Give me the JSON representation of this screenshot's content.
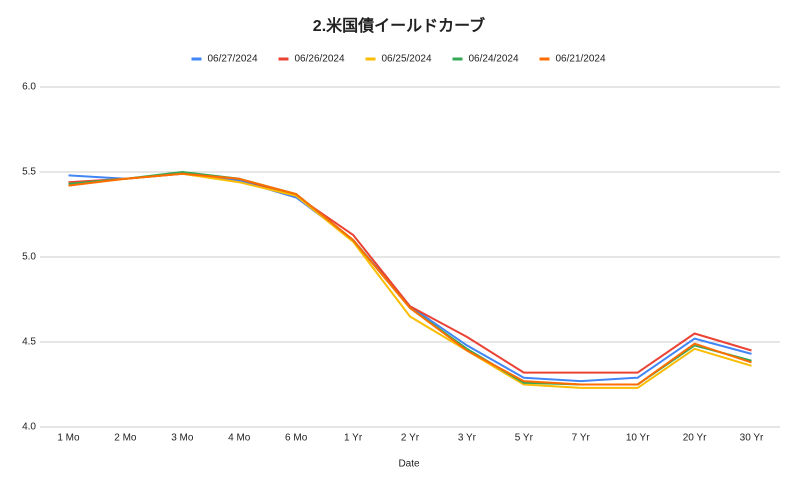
{
  "chart_data": {
    "type": "line",
    "title": "2.米国債イールドカーブ",
    "x_label": "Date",
    "categories": [
      "1 Mo",
      "2 Mo",
      "3 Mo",
      "4 Mo",
      "6 Mo",
      "1 Yr",
      "2 Yr",
      "3 Yr",
      "5 Yr",
      "7 Yr",
      "10 Yr",
      "20 Yr",
      "30 Yr"
    ],
    "series": [
      {
        "name": "06/27/2024",
        "color": "#4285f4",
        "values": [
          5.48,
          5.46,
          5.49,
          5.45,
          5.35,
          5.1,
          4.71,
          4.48,
          4.29,
          4.27,
          4.29,
          4.52,
          4.43
        ]
      },
      {
        "name": "06/26/2024",
        "color": "#ea4335",
        "values": [
          5.44,
          5.46,
          5.49,
          5.46,
          5.36,
          5.13,
          4.71,
          4.53,
          4.32,
          4.32,
          4.32,
          4.55,
          4.45
        ]
      },
      {
        "name": "06/25/2024",
        "color": "#fbbc04",
        "values": [
          5.43,
          5.46,
          5.49,
          5.44,
          5.36,
          5.09,
          4.65,
          4.45,
          4.25,
          4.23,
          4.23,
          4.46,
          4.36
        ]
      },
      {
        "name": "06/24/2024",
        "color": "#34a853",
        "values": [
          5.43,
          5.46,
          5.5,
          5.46,
          5.37,
          5.1,
          4.7,
          4.46,
          4.26,
          4.25,
          4.25,
          4.48,
          4.39
        ]
      },
      {
        "name": "06/21/2024",
        "color": "#ff6d01",
        "values": [
          5.42,
          5.46,
          5.49,
          5.46,
          5.37,
          5.1,
          4.7,
          4.45,
          4.27,
          4.25,
          4.25,
          4.49,
          4.38
        ]
      }
    ],
    "ylim": [
      4.0,
      6.0
    ],
    "yticks": [
      {
        "value": 4.0,
        "label": "4.0"
      },
      4.5,
      {
        "value": 5.0,
        "label": "5.0"
      },
      5.5,
      {
        "value": 6.0,
        "label": "6.0"
      }
    ],
    "grid": true,
    "legend": "top"
  }
}
